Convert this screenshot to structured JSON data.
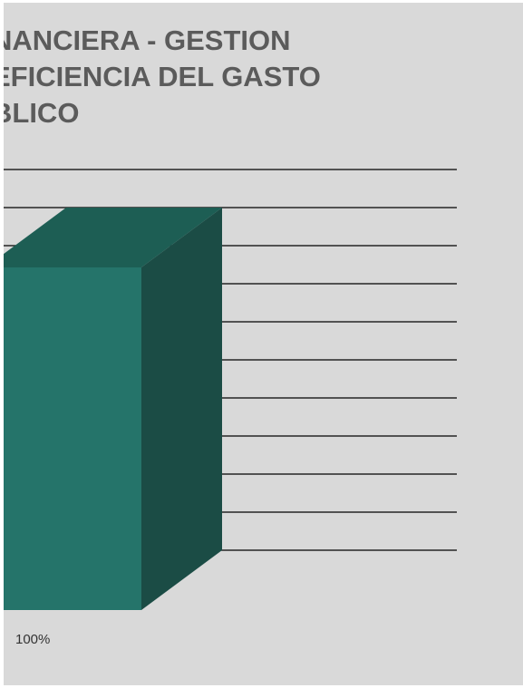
{
  "chart_data": {
    "type": "bar",
    "title": "NANCIERA - GESTION\nEFICIENCIA DEL GASTO\nBLICO",
    "categories": [
      ""
    ],
    "series": [
      {
        "values": [
          100
        ]
      }
    ],
    "data_labels": [
      "100%"
    ],
    "ylim": [
      0,
      100
    ],
    "grid": true,
    "style": "3d",
    "colors": {
      "bar_front": "#25746a",
      "bar_top": "#1d5e54",
      "bar_side": "#1b4c45",
      "gridline": "#262626",
      "background": "#d9d9d9",
      "title": "#5b5b5b"
    }
  }
}
